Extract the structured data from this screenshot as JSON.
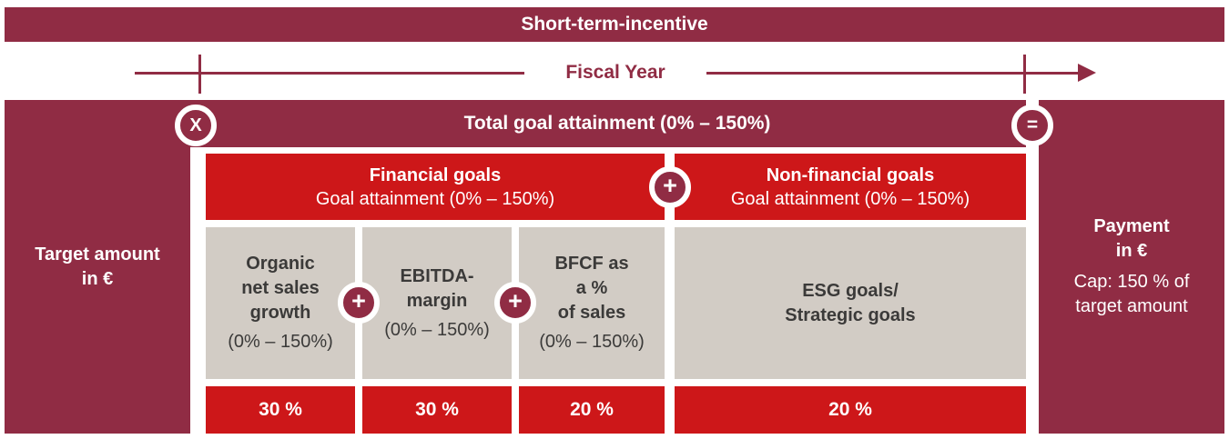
{
  "banner": {
    "title": "Short-term-incentive"
  },
  "timeline": {
    "label": "Fiscal Year"
  },
  "formula": {
    "multiply": "X",
    "plus": "+",
    "equals": "="
  },
  "total_bar": {
    "label": "Total goal attainment (0% – 150%)"
  },
  "target_panel": {
    "label": "Target amount\nin €"
  },
  "payment_panel": {
    "title": "Payment\nin €",
    "cap": "Cap: 150 % of\ntarget amount"
  },
  "groups": {
    "financial": {
      "title": "Financial goals",
      "subtitle": "Goal attainment (0% – 150%)"
    },
    "non_financial": {
      "title": "Non-financial goals",
      "subtitle": "Goal attainment (0% – 150%)"
    }
  },
  "goals": [
    {
      "name": "Organic\nnet sales\ngrowth",
      "range": "(0% – 150%)",
      "weight": "30 %"
    },
    {
      "name": "EBITDA-\nmargin",
      "range": "(0% – 150%)",
      "weight": "30 %"
    },
    {
      "name": "BFCF as\na %\nof sales",
      "range": "(0% – 150%)",
      "weight": "20 %"
    },
    {
      "name": "ESG goals/\nStrategic goals",
      "weight": "20 %"
    }
  ],
  "colors": {
    "maroon": "#902c44",
    "red": "#cd1719",
    "gray": "#d2ccc5",
    "dark_text": "#3b3a39",
    "white": "#ffffff"
  }
}
